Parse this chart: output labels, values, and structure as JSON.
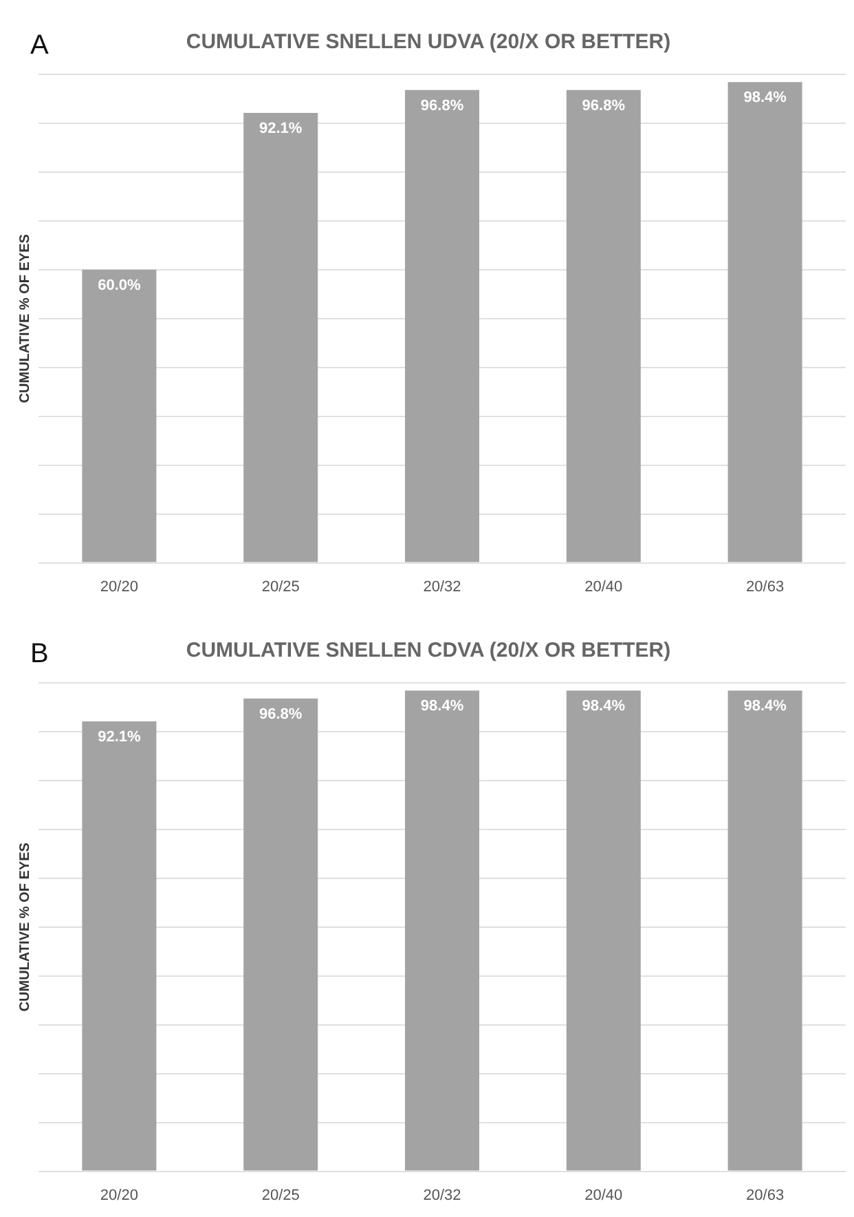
{
  "chart_data": [
    {
      "type": "bar",
      "title": "CUMULATIVE SNELLEN UDVA (20/X OR BETTER)",
      "ylabel": "CUMULATIVE % OF EYES",
      "annotations": [
        "A"
      ],
      "categories": [
        "20/20",
        "20/25",
        "20/32",
        "20/40",
        "20/63"
      ],
      "values": [
        60.0,
        92.1,
        96.8,
        96.8,
        98.4
      ],
      "color": "#a3a3a3",
      "value_labels": [
        "60.0%",
        "92.1%",
        "96.8%",
        "96.8%",
        "98.4%"
      ],
      "ylim": [
        0,
        100
      ],
      "yticks": [
        {
          "value": 0,
          "label": null
        },
        {
          "value": 10,
          "label": null
        },
        {
          "value": 20,
          "label": null
        },
        {
          "value": 30,
          "label": null
        },
        {
          "value": 40,
          "label": null
        },
        {
          "value": 50,
          "label": null
        },
        {
          "value": 60,
          "label": null
        },
        {
          "value": 70,
          "label": null
        },
        {
          "value": 80,
          "label": null
        },
        {
          "value": 90,
          "label": null
        },
        {
          "value": 100,
          "label": null
        }
      ],
      "grid": "y",
      "tick_labels": "x",
      "legend": false
    },
    {
      "type": "bar",
      "title": "CUMULATIVE SNELLEN CDVA (20/X OR BETTER)",
      "ylabel": "CUMULATIVE % OF EYES",
      "annotations": [
        "B"
      ],
      "categories": [
        "20/20",
        "20/25",
        "20/32",
        "20/40",
        "20/63"
      ],
      "values": [
        92.1,
        96.8,
        98.4,
        98.4,
        98.4
      ],
      "color": "#a3a3a3",
      "value_labels": [
        "92.1%",
        "96.8%",
        "98.4%",
        "98.4%",
        "98.4%"
      ],
      "ylim": [
        0,
        100
      ],
      "yticks": [
        {
          "value": 0,
          "label": null
        },
        {
          "value": 10,
          "label": null
        },
        {
          "value": 20,
          "label": null
        },
        {
          "value": 30,
          "label": null
        },
        {
          "value": 40,
          "label": null
        },
        {
          "value": 50,
          "label": null
        },
        {
          "value": 60,
          "label": null
        },
        {
          "value": 70,
          "label": null
        },
        {
          "value": 80,
          "label": null
        },
        {
          "value": 90,
          "label": null
        },
        {
          "value": 100,
          "label": null
        }
      ],
      "grid": "y",
      "tick_labels": "x",
      "legend": false
    }
  ]
}
